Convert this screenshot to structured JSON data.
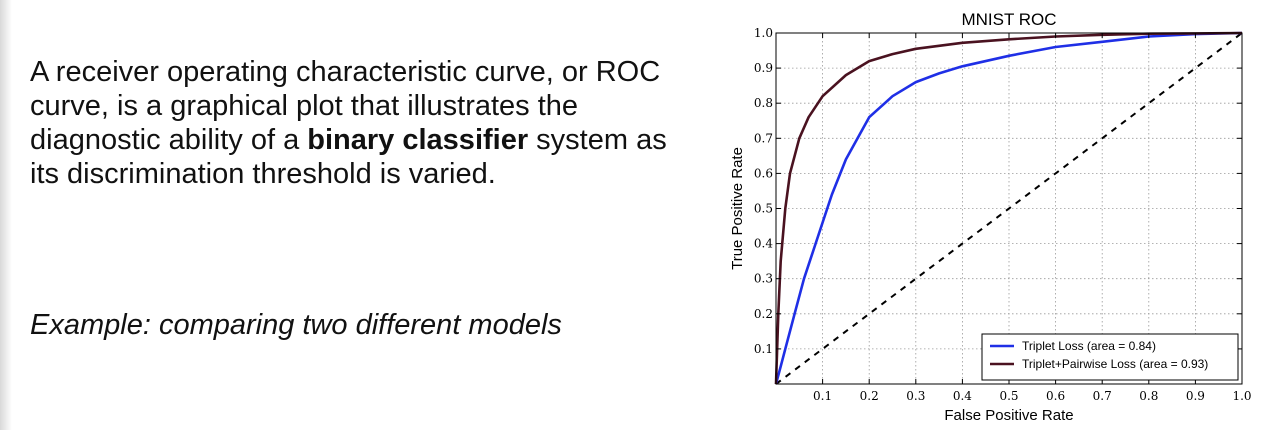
{
  "text": {
    "p1": "A receiver operating characteristic curve, or ROC curve, is a graphical plot that illustrates the diagnostic ability of a ",
    "bold": "binary classifier",
    "p2": " system as its discrimination threshold is varied.",
    "example": "Example: comparing two different models"
  },
  "chart_data": {
    "type": "line",
    "title": "MNIST ROC",
    "xlabel": "False Positive Rate",
    "ylabel": "True Positive Rate",
    "xlim": [
      0,
      1.0
    ],
    "ylim": [
      0,
      1.0
    ],
    "x_ticks": [
      "0.1",
      "0.2",
      "0.3",
      "0.4",
      "0.5",
      "0.6",
      "0.7",
      "0.8",
      "0.9",
      "1.0"
    ],
    "y_ticks": [
      "0.1",
      "0.2",
      "0.3",
      "0.4",
      "0.5",
      "0.6",
      "0.7",
      "0.8",
      "0.9",
      "1.0"
    ],
    "grid": true,
    "legend_position": "lower-right",
    "series": [
      {
        "name": "Triplet Loss (area = 0.84)",
        "color": "#1f2fe6",
        "x": [
          0,
          0.01,
          0.02,
          0.04,
          0.06,
          0.08,
          0.1,
          0.12,
          0.15,
          0.2,
          0.25,
          0.3,
          0.35,
          0.4,
          0.5,
          0.6,
          0.7,
          0.8,
          0.9,
          1.0
        ],
        "y": [
          0,
          0.05,
          0.1,
          0.2,
          0.3,
          0.38,
          0.46,
          0.54,
          0.64,
          0.76,
          0.82,
          0.86,
          0.885,
          0.905,
          0.935,
          0.96,
          0.975,
          0.99,
          0.997,
          1.0
        ]
      },
      {
        "name": "Triplet+Pairwise Loss (area = 0.93)",
        "color": "#4a1220",
        "x": [
          0,
          0.005,
          0.01,
          0.02,
          0.03,
          0.05,
          0.07,
          0.1,
          0.15,
          0.2,
          0.25,
          0.3,
          0.4,
          0.5,
          0.6,
          0.7,
          0.8,
          0.9,
          1.0
        ],
        "y": [
          0,
          0.2,
          0.35,
          0.5,
          0.6,
          0.7,
          0.76,
          0.82,
          0.88,
          0.92,
          0.94,
          0.955,
          0.972,
          0.982,
          0.99,
          0.995,
          0.998,
          0.999,
          1.0
        ]
      },
      {
        "name": "",
        "color": "#000000",
        "dashed": true,
        "x": [
          0,
          1.0
        ],
        "y": [
          0,
          1.0
        ]
      }
    ]
  }
}
